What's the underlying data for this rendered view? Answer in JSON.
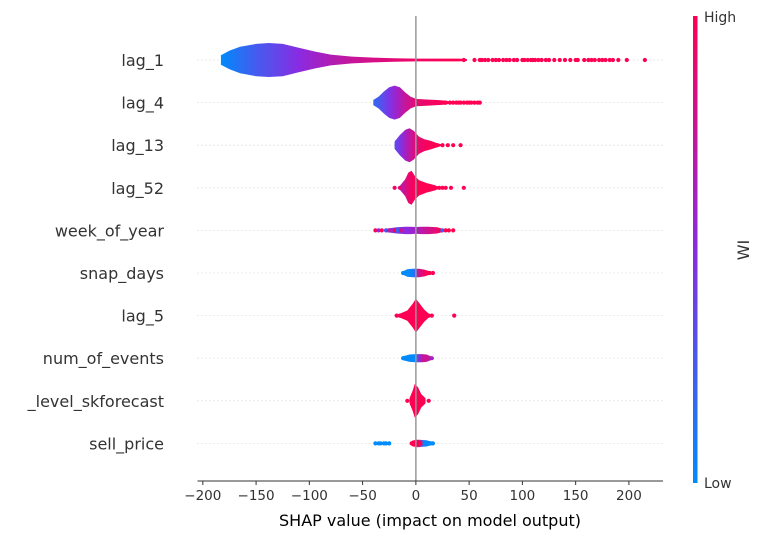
{
  "chart_data": {
    "type": "violin",
    "xlabel": "SHAP value (impact on model output)",
    "xlim": [
      -205,
      232
    ],
    "xticks": [
      -200,
      -150,
      -100,
      -50,
      0,
      50,
      100,
      150,
      200
    ],
    "xtick_labels": [
      "−200",
      "−150",
      "−100",
      "−50",
      "0",
      "50",
      "100",
      "150",
      "200"
    ],
    "zero_line": 0,
    "colorbar": {
      "label": "WI",
      "high_label": "High",
      "low_label": "Low",
      "low_color": "#008bfb",
      "high_color": "#ff0052",
      "mid_color": "#8a2be2"
    },
    "features": [
      {
        "name": "lag_1",
        "min": -183,
        "max": 215,
        "outliers": [
          [
            45,
            1
          ],
          [
            55,
            1
          ],
          [
            60,
            1
          ],
          [
            62,
            1
          ],
          [
            65,
            1
          ],
          [
            68,
            1
          ],
          [
            72,
            1
          ],
          [
            75,
            1
          ],
          [
            78,
            1
          ],
          [
            82,
            1
          ],
          [
            85,
            1
          ],
          [
            88,
            1
          ],
          [
            92,
            1
          ],
          [
            95,
            1
          ],
          [
            100,
            1
          ],
          [
            102,
            1
          ],
          [
            105,
            1
          ],
          [
            108,
            1
          ],
          [
            110,
            1
          ],
          [
            112,
            1
          ],
          [
            115,
            1
          ],
          [
            118,
            1
          ],
          [
            122,
            1
          ],
          [
            125,
            1
          ],
          [
            130,
            1
          ],
          [
            135,
            1
          ],
          [
            140,
            1
          ],
          [
            145,
            1
          ],
          [
            150,
            1
          ],
          [
            152,
            1
          ],
          [
            158,
            1
          ],
          [
            162,
            1
          ],
          [
            165,
            1
          ],
          [
            168,
            1
          ],
          [
            172,
            1
          ],
          [
            175,
            1
          ],
          [
            178,
            1
          ],
          [
            182,
            1
          ],
          [
            185,
            1
          ],
          [
            190,
            1
          ],
          [
            198,
            1
          ],
          [
            215,
            1
          ]
        ],
        "profile": [
          [
            -183,
            0.28,
            0.0
          ],
          [
            -175,
            0.55,
            0.06
          ],
          [
            -165,
            0.78,
            0.14
          ],
          [
            -150,
            0.95,
            0.25
          ],
          [
            -138,
            1.0,
            0.32
          ],
          [
            -125,
            0.95,
            0.4
          ],
          [
            -110,
            0.72,
            0.5
          ],
          [
            -95,
            0.5,
            0.58
          ],
          [
            -80,
            0.32,
            0.66
          ],
          [
            -60,
            0.2,
            0.75
          ],
          [
            -40,
            0.14,
            0.82
          ],
          [
            -20,
            0.1,
            0.88
          ],
          [
            0,
            0.08,
            0.93
          ],
          [
            20,
            0.08,
            0.97
          ],
          [
            40,
            0.08,
            1.0
          ],
          [
            48,
            0.05,
            1.0
          ]
        ]
      },
      {
        "name": "lag_4",
        "min": -40,
        "max": 60,
        "outliers": [
          [
            28,
            1
          ],
          [
            32,
            1
          ],
          [
            35,
            1
          ],
          [
            38,
            1
          ],
          [
            40,
            1
          ],
          [
            42,
            1
          ],
          [
            45,
            1
          ],
          [
            48,
            1
          ],
          [
            50,
            1
          ],
          [
            52,
            1
          ],
          [
            55,
            1
          ],
          [
            58,
            1
          ],
          [
            60,
            1
          ]
        ],
        "profile": [
          [
            -40,
            0.15,
            0.18
          ],
          [
            -35,
            0.35,
            0.25
          ],
          [
            -30,
            0.65,
            0.35
          ],
          [
            -25,
            0.9,
            0.45
          ],
          [
            -20,
            1.0,
            0.55
          ],
          [
            -15,
            0.9,
            0.65
          ],
          [
            -10,
            0.6,
            0.75
          ],
          [
            -5,
            0.35,
            0.82
          ],
          [
            0,
            0.22,
            0.88
          ],
          [
            10,
            0.18,
            0.92
          ],
          [
            20,
            0.15,
            0.96
          ],
          [
            28,
            0.12,
            1.0
          ],
          [
            32,
            0.05,
            1.0
          ]
        ]
      },
      {
        "name": "lag_13",
        "min": -20,
        "max": 42,
        "outliers": [
          [
            20,
            1
          ],
          [
            25,
            1
          ],
          [
            30,
            1
          ],
          [
            35,
            1
          ],
          [
            42,
            1
          ]
        ],
        "profile": [
          [
            -20,
            0.22,
            0.3
          ],
          [
            -15,
            0.6,
            0.45
          ],
          [
            -10,
            0.9,
            0.6
          ],
          [
            -6,
            1.0,
            0.72
          ],
          [
            -2,
            0.85,
            0.82
          ],
          [
            3,
            0.5,
            0.9
          ],
          [
            8,
            0.35,
            0.95
          ],
          [
            14,
            0.25,
            0.98
          ],
          [
            20,
            0.12,
            1.0
          ],
          [
            24,
            0.05,
            1.0
          ]
        ]
      },
      {
        "name": "lag_52",
        "min": -20,
        "max": 45,
        "outliers": [
          [
            -20,
            0.95
          ],
          [
            -15,
            0.9
          ],
          [
            22,
            1
          ],
          [
            25,
            1
          ],
          [
            28,
            1
          ],
          [
            33,
            1
          ],
          [
            45,
            1
          ]
        ],
        "profile": [
          [
            -15,
            0.12,
            0.65
          ],
          [
            -10,
            0.5,
            0.8
          ],
          [
            -7,
            0.9,
            0.9
          ],
          [
            -4,
            1.0,
            0.95
          ],
          [
            -1,
            0.7,
            0.97
          ],
          [
            3,
            0.45,
            1.0
          ],
          [
            10,
            0.28,
            1.0
          ],
          [
            18,
            0.15,
            1.0
          ],
          [
            22,
            0.05,
            1.0
          ]
        ]
      },
      {
        "name": "week_of_year",
        "min": -38,
        "max": 35,
        "outliers": [
          [
            -38,
            1
          ],
          [
            -35,
            0.5
          ],
          [
            -32,
            1
          ],
          [
            -28,
            0.3
          ],
          [
            -25,
            0.7
          ],
          [
            -20,
            1
          ],
          [
            -17,
            0.2
          ],
          [
            -14,
            0.8
          ],
          [
            25,
            0.2
          ],
          [
            28,
            1
          ],
          [
            31,
            1
          ],
          [
            35,
            1
          ]
        ],
        "profile": [
          [
            -28,
            0.1,
            0.5
          ],
          [
            -18,
            0.18,
            0.4
          ],
          [
            -10,
            0.22,
            0.5
          ],
          [
            -5,
            0.22,
            0.55
          ],
          [
            0,
            0.2,
            0.6
          ],
          [
            5,
            0.22,
            0.7
          ],
          [
            12,
            0.22,
            0.8
          ],
          [
            20,
            0.18,
            0.9
          ],
          [
            25,
            0.1,
            1.0
          ]
        ]
      },
      {
        "name": "snap_days",
        "min": -12,
        "max": 16,
        "outliers": [
          [
            -12,
            0
          ],
          [
            -10,
            0
          ],
          [
            13,
            1
          ],
          [
            16,
            1
          ]
        ],
        "profile": [
          [
            -12,
            0.1,
            0.0
          ],
          [
            -8,
            0.22,
            0.0
          ],
          [
            -3,
            0.25,
            0.05
          ],
          [
            0,
            0.25,
            0.3
          ],
          [
            3,
            0.25,
            0.8
          ],
          [
            8,
            0.2,
            0.95
          ],
          [
            12,
            0.12,
            1.0
          ],
          [
            14,
            0.05,
            1.0
          ]
        ]
      },
      {
        "name": "lag_5",
        "min": -18,
        "max": 36,
        "outliers": [
          [
            -18,
            1
          ],
          [
            -15,
            1
          ],
          [
            12,
            1
          ],
          [
            15,
            1
          ],
          [
            36,
            1
          ]
        ],
        "profile": [
          [
            -15,
            0.12,
            1.0
          ],
          [
            -8,
            0.3,
            1.0
          ],
          [
            -3,
            0.7,
            1.0
          ],
          [
            0,
            1.0,
            1.0
          ],
          [
            3,
            0.75,
            1.0
          ],
          [
            8,
            0.35,
            1.0
          ],
          [
            12,
            0.12,
            1.0
          ]
        ]
      },
      {
        "name": "num_of_events",
        "min": -12,
        "max": 15,
        "outliers": [
          [
            -12,
            0
          ],
          [
            15,
            0.6
          ]
        ],
        "profile": [
          [
            -12,
            0.12,
            0.0
          ],
          [
            -6,
            0.22,
            0.0
          ],
          [
            0,
            0.24,
            0.02
          ],
          [
            3,
            0.24,
            0.5
          ],
          [
            6,
            0.24,
            0.75
          ],
          [
            10,
            0.22,
            0.75
          ],
          [
            14,
            0.12,
            0.75
          ]
        ]
      },
      {
        "name": "_level_skforecast",
        "min": -8,
        "max": 12,
        "outliers": [
          [
            -8,
            1
          ],
          [
            12,
            1
          ]
        ],
        "profile": [
          [
            -6,
            0.15,
            1.0
          ],
          [
            -3,
            0.6,
            1.0
          ],
          [
            -1,
            1.0,
            1.0
          ],
          [
            2,
            0.8,
            1.0
          ],
          [
            5,
            0.4,
            1.0
          ],
          [
            9,
            0.15,
            1.0
          ]
        ]
      },
      {
        "name": "sell_price",
        "min": -38,
        "max": 16,
        "outliers": [
          [
            -38,
            0
          ],
          [
            -35,
            0
          ],
          [
            -33,
            0
          ],
          [
            -30,
            0
          ],
          [
            -28,
            0
          ],
          [
            -25,
            0
          ],
          [
            -4,
            1
          ],
          [
            -2,
            1
          ],
          [
            0,
            1
          ],
          [
            3,
            1
          ],
          [
            5,
            1
          ],
          [
            8,
            0
          ],
          [
            10,
            0
          ],
          [
            12,
            0
          ],
          [
            14,
            0
          ],
          [
            16,
            0
          ]
        ],
        "profile": [
          [
            -4,
            0.15,
            1.0
          ],
          [
            0,
            0.22,
            1.0
          ],
          [
            3,
            0.22,
            0.9
          ],
          [
            6,
            0.2,
            0.2
          ],
          [
            10,
            0.18,
            0.0
          ],
          [
            15,
            0.1,
            0.0
          ]
        ]
      }
    ]
  }
}
